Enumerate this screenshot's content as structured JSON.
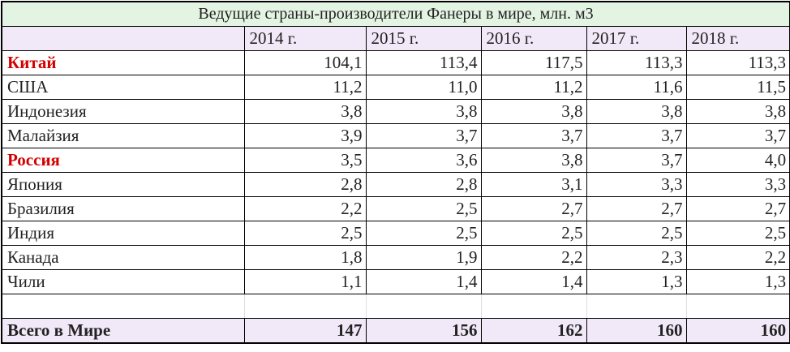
{
  "table": {
    "title": "Ведущие страны-производители Фанеры в мире, млн. м3",
    "columns": [
      "2014 г.",
      "2015 г.",
      "2016 г.",
      "2017 г.",
      "2018 г."
    ],
    "rows": [
      {
        "label": "Китай",
        "highlight": true,
        "values": [
          "104,1",
          "113,4",
          "117,5",
          "113,3",
          "113,3"
        ]
      },
      {
        "label": "США",
        "values": [
          "11,2",
          "11,0",
          "11,2",
          "11,6",
          "11,5"
        ]
      },
      {
        "label": "Индонезия",
        "values": [
          "3,8",
          "3,8",
          "3,8",
          "3,8",
          "3,8"
        ]
      },
      {
        "label": "Малайзия",
        "values": [
          "3,9",
          "3,7",
          "3,7",
          "3,7",
          "3,7"
        ]
      },
      {
        "label": "Россия",
        "highlight": true,
        "values": [
          "3,5",
          "3,6",
          "3,8",
          "3,7",
          "4,0"
        ]
      },
      {
        "label": "Япония",
        "values": [
          "2,8",
          "2,8",
          "3,1",
          "3,3",
          "3,3"
        ]
      },
      {
        "label": "Бразилия",
        "values": [
          "2,2",
          "2,5",
          "2,7",
          "2,7",
          "2,7"
        ]
      },
      {
        "label": "Индия",
        "values": [
          "2,5",
          "2,5",
          "2,5",
          "2,5",
          "2,5"
        ]
      },
      {
        "label": "Канада",
        "values": [
          "1,8",
          "1,9",
          "2,2",
          "2,3",
          "2,2"
        ]
      },
      {
        "label": "Чили",
        "values": [
          "1,1",
          "1,4",
          "1,4",
          "1,3",
          "1,3"
        ]
      }
    ],
    "total": {
      "label": "Всего в Мире",
      "values": [
        "147",
        "156",
        "162",
        "160",
        "160"
      ]
    }
  }
}
